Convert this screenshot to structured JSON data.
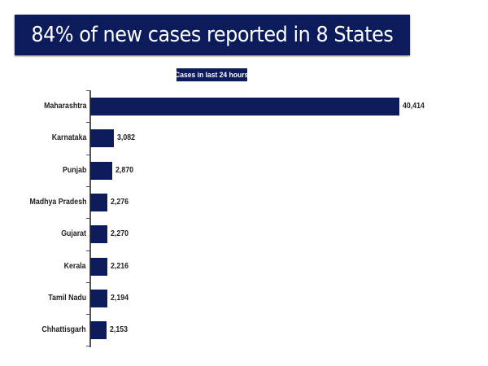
{
  "header": {
    "title": "84% of new cases reported in 8 States",
    "subtitle": "Cases in last 24 hours"
  },
  "colors": {
    "bar": "#0c1b5c",
    "banner": "#0c1b5c"
  },
  "rows": [
    {
      "label": "Maharashtra",
      "value": 40414,
      "display": "40,414"
    },
    {
      "label": "Karnataka",
      "value": 3082,
      "display": "3,082"
    },
    {
      "label": "Punjab",
      "value": 2870,
      "display": "2,870"
    },
    {
      "label": "Madhya Pradesh",
      "value": 2276,
      "display": "2,276"
    },
    {
      "label": "Gujarat",
      "value": 2270,
      "display": "2,270"
    },
    {
      "label": "Kerala",
      "value": 2216,
      "display": "2,216"
    },
    {
      "label": "Tamil Nadu",
      "value": 2194,
      "display": "2,194"
    },
    {
      "label": "Chhattisgarh",
      "value": 2153,
      "display": "2,153"
    }
  ],
  "chart_data": {
    "type": "bar",
    "orientation": "horizontal",
    "title": "84% of new cases reported in 8 States",
    "subtitle": "Cases in last 24 hours",
    "categories": [
      "Maharashtra",
      "Karnataka",
      "Punjab",
      "Madhya Pradesh",
      "Gujarat",
      "Kerala",
      "Tamil Nadu",
      "Chhattisgarh"
    ],
    "values": [
      40414,
      3082,
      2870,
      2276,
      2270,
      2216,
      2194,
      2153
    ],
    "xlabel": "",
    "ylabel": "",
    "data_labels": true,
    "grid": false,
    "legend": "none"
  }
}
